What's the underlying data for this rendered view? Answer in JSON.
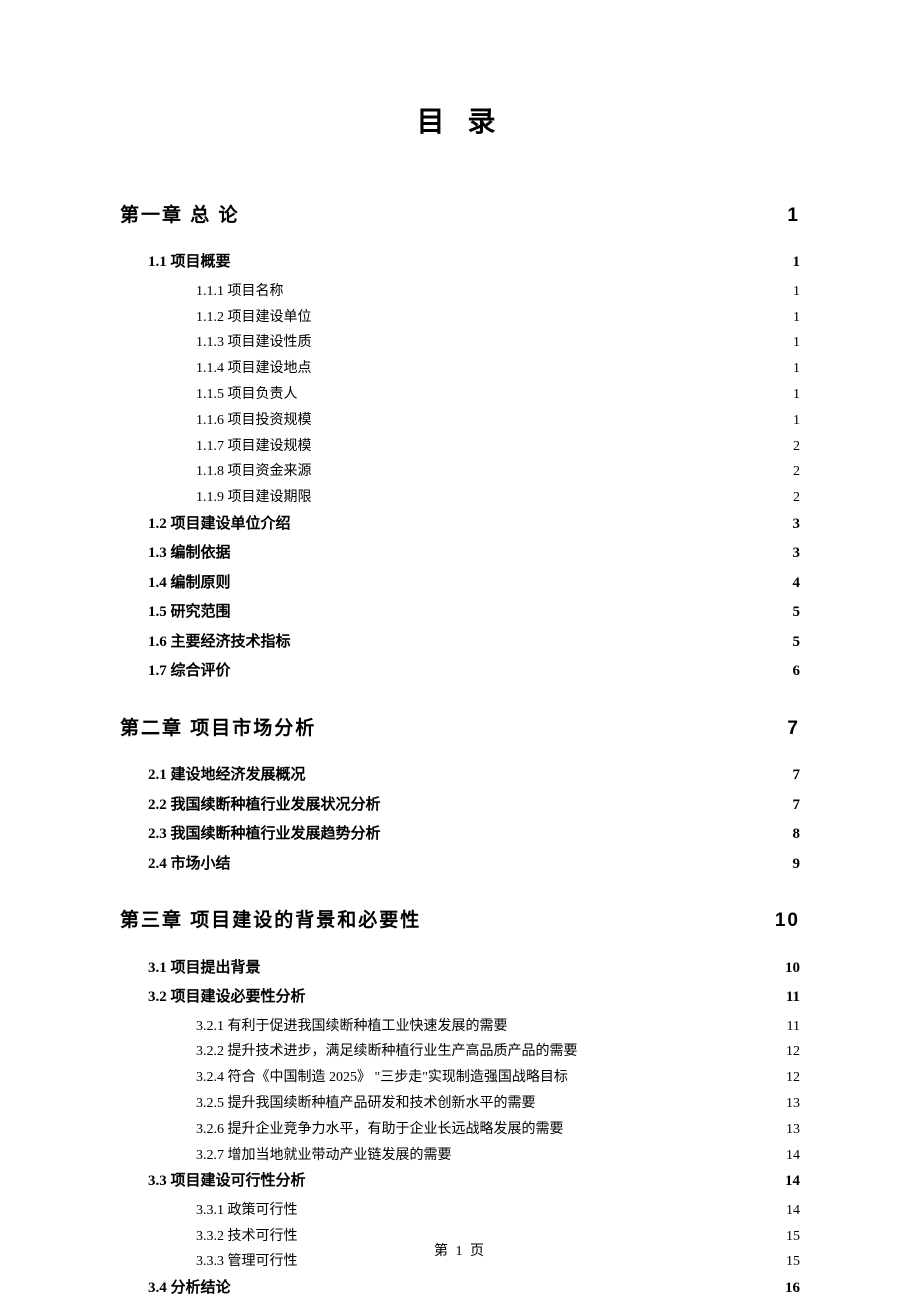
{
  "title": "目 录",
  "footer": "第 1 页",
  "colors": {
    "text": "#000000",
    "background": "#ffffff"
  },
  "typography": {
    "title_fontsize": 28,
    "level1_fontsize": 19,
    "level2_fontsize": 15,
    "level3_fontsize": 14,
    "footer_fontsize": 14,
    "level1_font": "SimHei",
    "body_font": "SimSun"
  },
  "toc": [
    {
      "level": 1,
      "label": "第一章 总 论",
      "page": "1"
    },
    {
      "level": 2,
      "label": "1.1 项目概要",
      "page": "1"
    },
    {
      "level": 3,
      "label": "1.1.1 项目名称",
      "page": "1"
    },
    {
      "level": 3,
      "label": "1.1.2 项目建设单位",
      "page": "1"
    },
    {
      "level": 3,
      "label": "1.1.3 项目建设性质",
      "page": "1"
    },
    {
      "level": 3,
      "label": "1.1.4 项目建设地点",
      "page": "1"
    },
    {
      "level": 3,
      "label": "1.1.5 项目负责人",
      "page": "1"
    },
    {
      "level": 3,
      "label": "1.1.6 项目投资规模",
      "page": "1"
    },
    {
      "level": 3,
      "label": "1.1.7 项目建设规模",
      "page": "2"
    },
    {
      "level": 3,
      "label": "1.1.8 项目资金来源",
      "page": "2"
    },
    {
      "level": 3,
      "label": "1.1.9 项目建设期限",
      "page": "2"
    },
    {
      "level": 2,
      "label": "1.2 项目建设单位介绍",
      "page": "3"
    },
    {
      "level": 2,
      "label": "1.3 编制依据",
      "page": "3"
    },
    {
      "level": 2,
      "label": "1.4 编制原则",
      "page": "4"
    },
    {
      "level": 2,
      "label": "1.5 研究范围",
      "page": "5"
    },
    {
      "level": 2,
      "label": "1.6 主要经济技术指标",
      "page": "5"
    },
    {
      "level": 2,
      "label": "1.7 综合评价",
      "page": "6"
    },
    {
      "level": 1,
      "label": "第二章 项目市场分析",
      "page": "7"
    },
    {
      "level": 2,
      "label": "2.1 建设地经济发展概况",
      "page": "7"
    },
    {
      "level": 2,
      "label": "2.2 我国续断种植行业发展状况分析",
      "page": "7"
    },
    {
      "level": 2,
      "label": "2.3 我国续断种植行业发展趋势分析",
      "page": "8"
    },
    {
      "level": 2,
      "label": "2.4 市场小结",
      "page": "9"
    },
    {
      "level": 1,
      "label": "第三章 项目建设的背景和必要性",
      "page": "10"
    },
    {
      "level": 2,
      "label": "3.1 项目提出背景",
      "page": "10"
    },
    {
      "level": 2,
      "label": "3.2 项目建设必要性分析",
      "page": "11"
    },
    {
      "level": 3,
      "label": "3.2.1 有利于促进我国续断种植工业快速发展的需要",
      "page": "11"
    },
    {
      "level": 3,
      "label": "3.2.2 提升技术进步，满足续断种植行业生产高品质产品的需要",
      "page": "12"
    },
    {
      "level": 3,
      "label": "3.2.4 符合《中国制造 2025》 \"三步走\"实现制造强国战略目标",
      "page": "12"
    },
    {
      "level": 3,
      "label": "3.2.5 提升我国续断种植产品研发和技术创新水平的需要",
      "page": "13"
    },
    {
      "level": 3,
      "label": "3.2.6 提升企业竞争力水平，有助于企业长远战略发展的需要",
      "page": "13"
    },
    {
      "level": 3,
      "label": "3.2.7 增加当地就业带动产业链发展的需要",
      "page": "14"
    },
    {
      "level": 2,
      "label": "3.3 项目建设可行性分析",
      "page": "14"
    },
    {
      "level": 3,
      "label": "3.3.1 政策可行性",
      "page": "14"
    },
    {
      "level": 3,
      "label": "3.3.2 技术可行性",
      "page": "15"
    },
    {
      "level": 3,
      "label": "3.3.3 管理可行性",
      "page": "15"
    },
    {
      "level": 2,
      "label": "3.4 分析结论",
      "page": "16"
    }
  ]
}
